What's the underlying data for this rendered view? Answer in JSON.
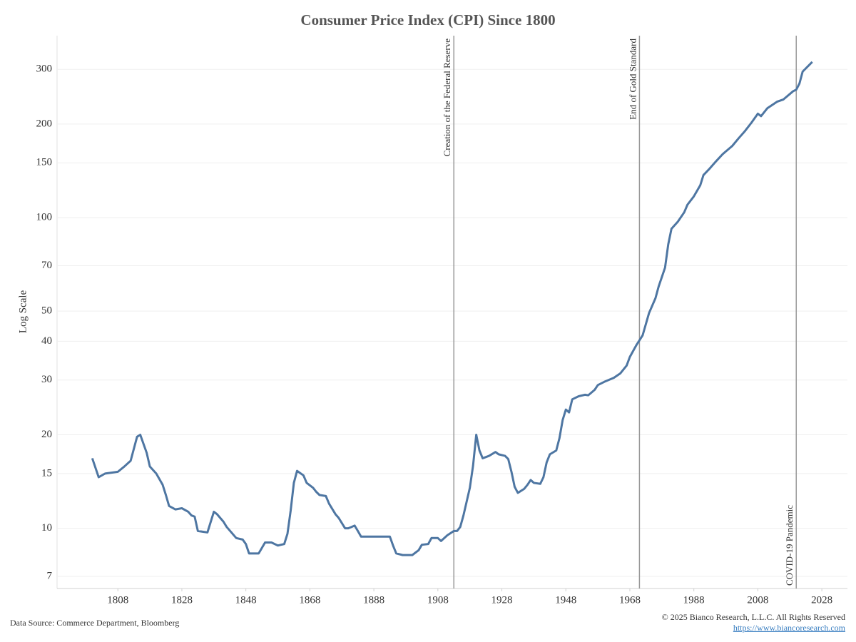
{
  "chart_data": {
    "type": "line",
    "title": "Consumer Price Index (CPI) Since 1800",
    "y_label": "Log Scale",
    "log_y": true,
    "grid": true,
    "color": "#4e76a2",
    "source": "Data Source: Commerce Department, Bloomberg",
    "copyright": "© 2025 Bianco Research, L.L.C. All Rights Reserved",
    "url": "https://www.biancoresearch.com",
    "xlim": [
      1789,
      2036
    ],
    "xticks": [
      1808,
      1828,
      1848,
      1868,
      1888,
      1908,
      1928,
      1948,
      1968,
      1988,
      2008,
      2028
    ],
    "ylim": [
      6.4,
      385
    ],
    "yticks": [
      7,
      10,
      15,
      20,
      30,
      40,
      50,
      70,
      100,
      150,
      200,
      300
    ],
    "annotations": [
      {
        "x": 1913,
        "label": "Creation of the Federal Reserve",
        "position": "top"
      },
      {
        "x": 1971,
        "label": "End of Gold Standard",
        "position": "top"
      },
      {
        "x": 2020,
        "label": "COVID-19 Pandemic",
        "position": "bottom"
      }
    ],
    "x": [
      1800,
      1802,
      1804,
      1806,
      1808,
      1810,
      1812,
      1814,
      1815,
      1817,
      1818,
      1820,
      1822,
      1823,
      1824,
      1826,
      1828,
      1830,
      1831,
      1832,
      1833,
      1836,
      1838,
      1839,
      1841,
      1842,
      1845,
      1847,
      1848,
      1849,
      1852,
      1854,
      1856,
      1858,
      1859,
      1860,
      1861,
      1862,
      1863,
      1864,
      1866,
      1867,
      1869,
      1870,
      1871,
      1873,
      1874,
      1876,
      1877,
      1879,
      1880,
      1882,
      1883,
      1884,
      1887,
      1893,
      1894,
      1895,
      1897,
      1900,
      1902,
      1903,
      1905,
      1906,
      1908,
      1909,
      1911,
      1913,
      1914,
      1915,
      1916,
      1918,
      1919,
      1920,
      1921,
      1922,
      1924,
      1926,
      1927,
      1929,
      1930,
      1931,
      1932,
      1933,
      1935,
      1936,
      1937,
      1938,
      1940,
      1941,
      1942,
      1943,
      1945,
      1946,
      1947,
      1948,
      1949,
      1950,
      1952,
      1954,
      1955,
      1957,
      1958,
      1960,
      1963,
      1965,
      1967,
      1968,
      1970,
      1972,
      1974,
      1976,
      1977,
      1979,
      1980,
      1981,
      1983,
      1985,
      1986,
      1988,
      1990,
      1991,
      1993,
      1995,
      1997,
      2000,
      2002,
      2004,
      2006,
      2008,
      2009,
      2011,
      2014,
      2016,
      2019,
      2020,
      2021,
      2022,
      2025
    ],
    "values": [
      16.8,
      14.6,
      15.0,
      15.1,
      15.2,
      15.8,
      16.5,
      19.7,
      20.0,
      17.5,
      15.8,
      15.0,
      13.8,
      12.8,
      11.8,
      11.5,
      11.6,
      11.3,
      11.0,
      10.9,
      9.8,
      9.7,
      11.3,
      11.1,
      10.5,
      10.1,
      9.3,
      9.2,
      8.9,
      8.3,
      8.3,
      9.0,
      9.0,
      8.8,
      8.85,
      8.9,
      9.6,
      11.4,
      14.0,
      15.3,
      14.8,
      14.0,
      13.5,
      13.1,
      12.8,
      12.7,
      12.0,
      11.1,
      10.8,
      10.0,
      10.0,
      10.2,
      9.8,
      9.4,
      9.4,
      9.4,
      8.8,
      8.3,
      8.2,
      8.2,
      8.5,
      8.85,
      8.9,
      9.3,
      9.3,
      9.1,
      9.5,
      9.8,
      9.8,
      10.1,
      11.0,
      13.5,
      15.9,
      20.0,
      17.8,
      16.8,
      17.1,
      17.6,
      17.3,
      17.1,
      16.7,
      15.2,
      13.6,
      13.0,
      13.4,
      13.8,
      14.3,
      14.0,
      13.9,
      14.6,
      16.3,
      17.3,
      17.8,
      19.5,
      22.3,
      24.1,
      23.6,
      26.0,
      26.6,
      26.9,
      26.8,
      27.9,
      28.9,
      29.6,
      30.5,
      31.5,
      33.4,
      35.6,
      38.8,
      41.8,
      49.3,
      55,
      60,
      69,
      82,
      92,
      97,
      104,
      110,
      117,
      127,
      137,
      144,
      152,
      160,
      170,
      180,
      190,
      202,
      216,
      212,
      225,
      236,
      240,
      255,
      258,
      270,
      295,
      317
    ]
  }
}
